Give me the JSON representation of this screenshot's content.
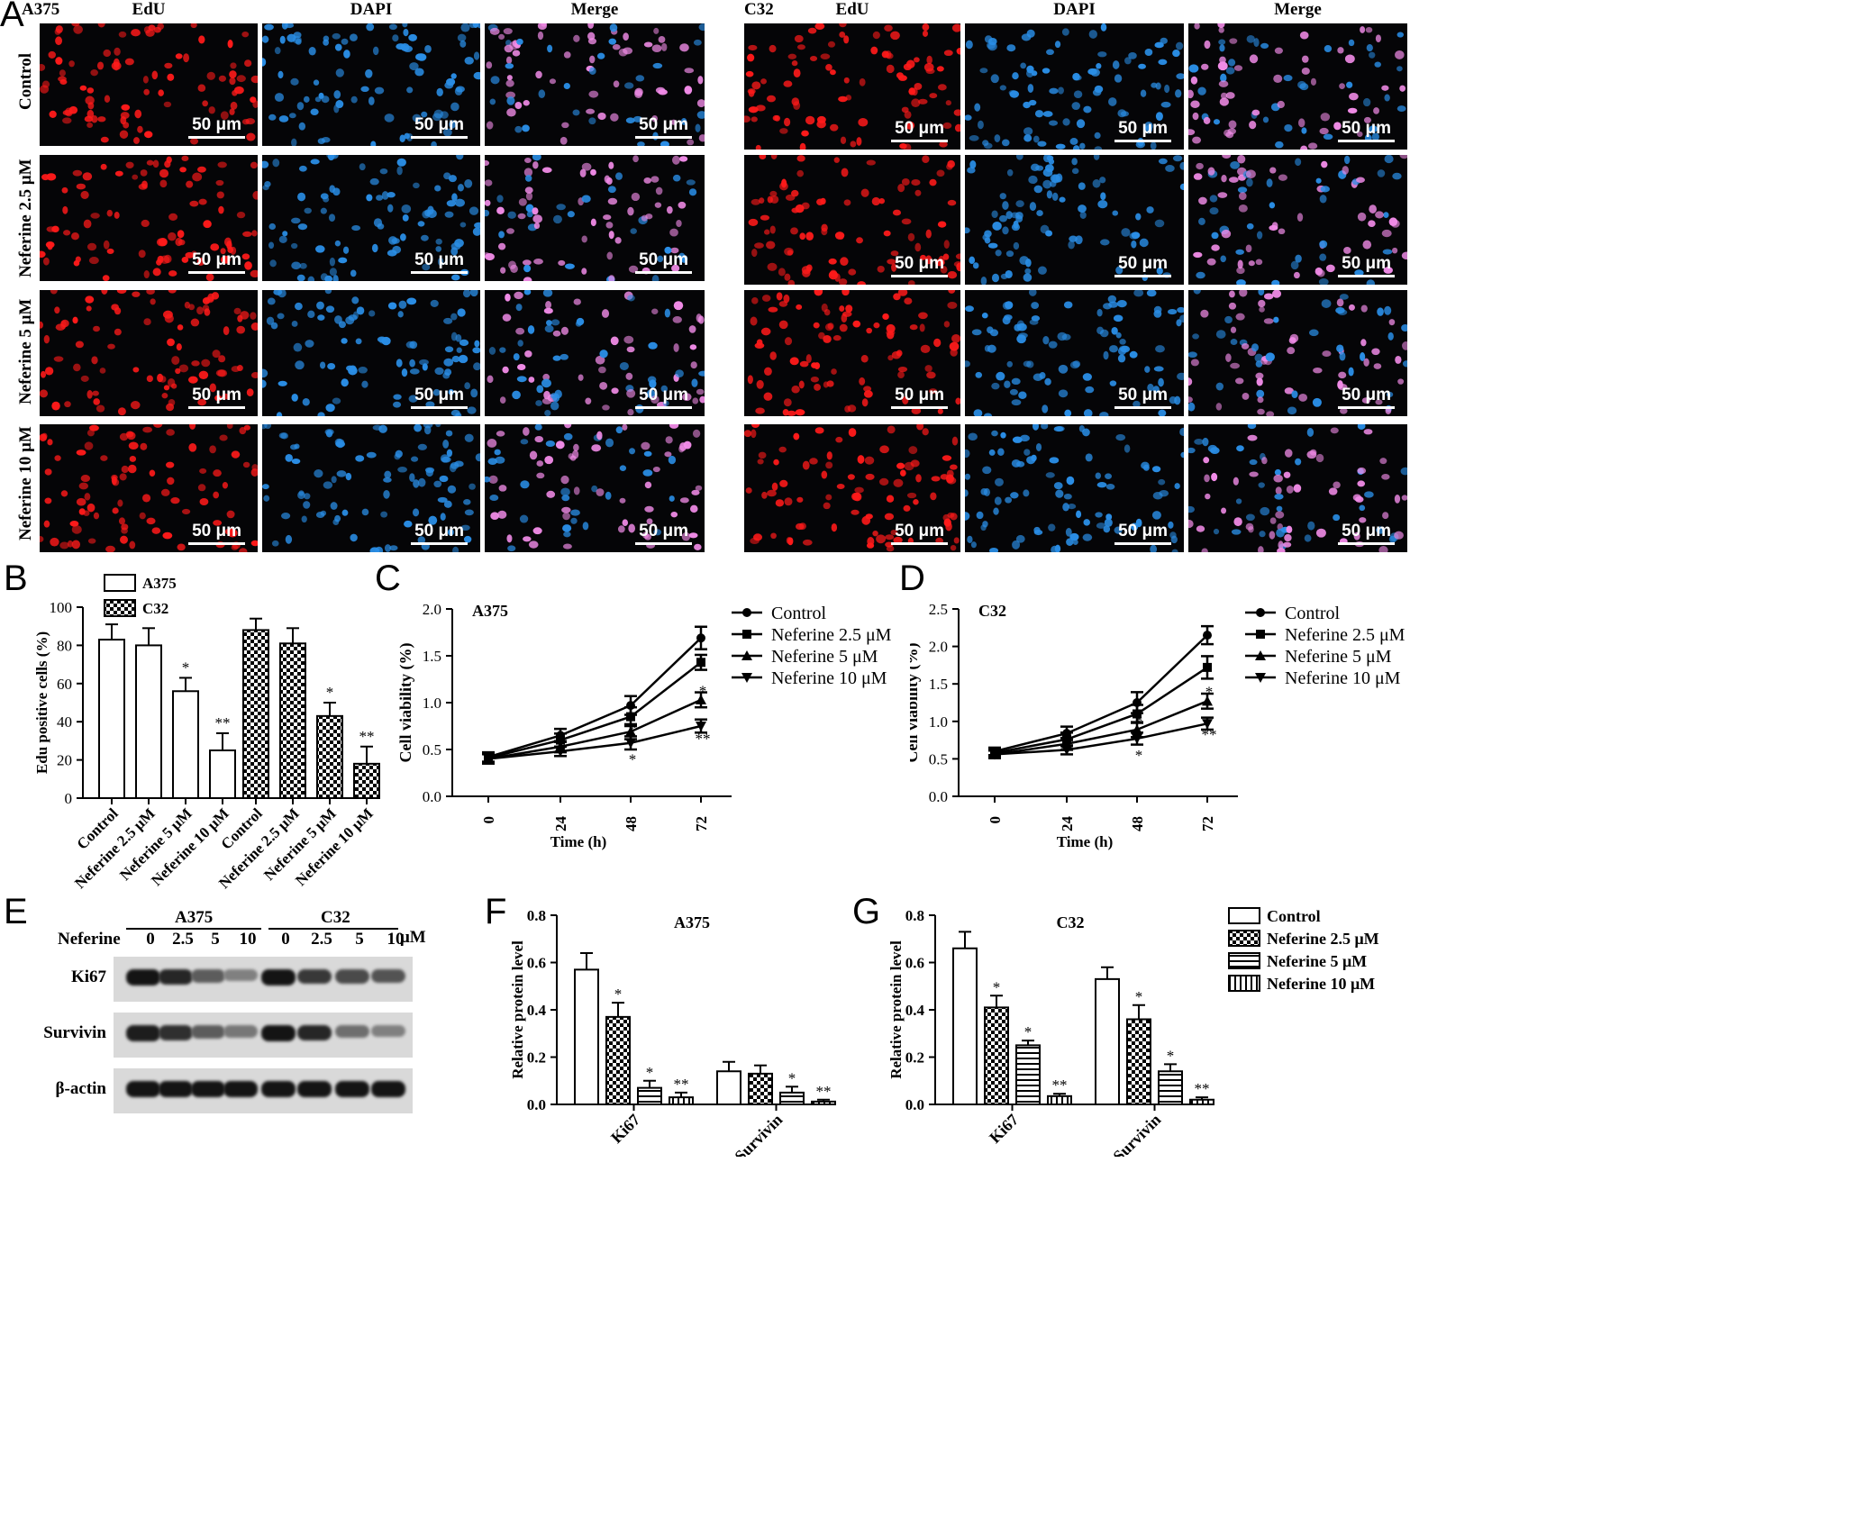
{
  "panel_letters": {
    "a": "A",
    "b": "B",
    "c": "C",
    "d": "D",
    "e": "E",
    "f": "F",
    "g": "G"
  },
  "panel_a": {
    "left": {
      "cell": "A375",
      "columns": [
        "EdU",
        "DAPI",
        "Merge"
      ]
    },
    "right": {
      "cell": "C32",
      "columns": [
        "EdU",
        "DAPI",
        "Merge"
      ]
    },
    "rows": [
      "Control",
      "Neferine 2.5 μM",
      "Neferine 5 μM",
      "Neferine 10 μM"
    ],
    "scale_bar": "50 μm",
    "colors": {
      "edu": "#ff1a1a",
      "dapi": "#2a8ee6",
      "merge": "#f28ce8"
    }
  },
  "chart_data": [
    {
      "panel": "B",
      "type": "bar",
      "ylabel": "Edu positive cells (%)",
      "ylim": [
        0,
        100
      ],
      "yticks": [
        0,
        20,
        40,
        60,
        80,
        100
      ],
      "categories": [
        "Control",
        "Neferine 2.5 μM",
        "Neferine 5 μM",
        "Neferine 10 μM"
      ],
      "series": [
        {
          "name": "A375",
          "values": [
            83,
            80,
            56,
            25
          ],
          "errors": [
            8,
            9,
            7,
            9
          ],
          "sig": [
            "",
            "",
            "*",
            "**"
          ]
        },
        {
          "name": "C32",
          "values": [
            88,
            81,
            43,
            18
          ],
          "errors": [
            6,
            8,
            7,
            9
          ],
          "sig": [
            "",
            "",
            "*",
            "**"
          ]
        }
      ]
    },
    {
      "panel": "C",
      "type": "line",
      "title": "A375",
      "xlabel": "Time (h)",
      "ylabel": "Cell viability (%)",
      "x": [
        0,
        24,
        48,
        72
      ],
      "ylim": [
        0,
        2.0
      ],
      "yticks": [
        "0.0",
        "0.5",
        "1.0",
        "1.5",
        "2.0"
      ],
      "series": [
        {
          "name": "Control",
          "marker": "circle",
          "values": [
            0.42,
            0.65,
            0.97,
            1.69
          ],
          "errors": [
            0.05,
            0.07,
            0.1,
            0.12
          ]
        },
        {
          "name": "Neferine 2.5 μM",
          "marker": "square",
          "values": [
            0.41,
            0.6,
            0.85,
            1.43
          ],
          "errors": [
            0.05,
            0.07,
            0.1,
            0.08
          ]
        },
        {
          "name": "Neferine 5 μM",
          "marker": "triangle",
          "values": [
            0.4,
            0.53,
            0.69,
            1.03
          ],
          "errors": [
            0.05,
            0.06,
            0.08,
            0.08
          ]
        },
        {
          "name": "Neferine 10 μM",
          "marker": "triangle-down",
          "values": [
            0.4,
            0.48,
            0.57,
            0.75
          ],
          "errors": [
            0.05,
            0.05,
            0.07,
            0.07
          ]
        }
      ],
      "annotations": [
        {
          "x": 48,
          "y": 0.73,
          "text": "*"
        },
        {
          "x": 48,
          "y": 0.4,
          "text": "*"
        },
        {
          "x": 72,
          "y": 1.13,
          "text": "*"
        },
        {
          "x": 72,
          "y": 0.62,
          "text": "**"
        }
      ]
    },
    {
      "panel": "D",
      "type": "line",
      "title": "C32",
      "xlabel": "Time (h)",
      "ylabel": "Cell viability (%)",
      "x": [
        0,
        24,
        48,
        72
      ],
      "ylim": [
        0,
        2.5
      ],
      "yticks": [
        "0.0",
        "0.5",
        "1.0",
        "1.5",
        "2.0",
        "2.5"
      ],
      "series": [
        {
          "name": "Control",
          "marker": "circle",
          "values": [
            0.6,
            0.84,
            1.25,
            2.15
          ],
          "errors": [
            0.05,
            0.09,
            0.14,
            0.12
          ]
        },
        {
          "name": "Neferine 2.5 μM",
          "marker": "square",
          "values": [
            0.58,
            0.76,
            1.1,
            1.72
          ],
          "errors": [
            0.05,
            0.09,
            0.12,
            0.15
          ]
        },
        {
          "name": "Neferine 5 μM",
          "marker": "triangle",
          "values": [
            0.56,
            0.7,
            0.89,
            1.27
          ],
          "errors": [
            0.05,
            0.08,
            0.1,
            0.1
          ]
        },
        {
          "name": "Neferine 10 μM",
          "marker": "triangle-down",
          "values": [
            0.56,
            0.62,
            0.77,
            0.97
          ],
          "errors": [
            0.05,
            0.06,
            0.08,
            0.08
          ]
        }
      ],
      "annotations": [
        {
          "x": 48,
          "y": 1.01,
          "text": "*"
        },
        {
          "x": 48,
          "y": 0.55,
          "text": "*"
        },
        {
          "x": 72,
          "y": 1.4,
          "text": "*"
        },
        {
          "x": 72,
          "y": 0.83,
          "text": "**"
        }
      ]
    },
    {
      "panel": "F",
      "type": "bar",
      "title": "A375",
      "ylabel": "Relative protein level",
      "ylim": [
        0,
        0.8
      ],
      "yticks": [
        "0.0",
        "0.2",
        "0.4",
        "0.6",
        "0.8"
      ],
      "categories": [
        "Ki67",
        "Survivin"
      ],
      "series": [
        {
          "name": "Control",
          "values": [
            0.57,
            0.14
          ],
          "errors": [
            0.07,
            0.04
          ]
        },
        {
          "name": "Neferine 2.5 μM",
          "values": [
            0.37,
            0.13
          ],
          "errors": [
            0.06,
            0.035
          ]
        },
        {
          "name": "Neferine 5 μM",
          "values": [
            0.07,
            0.05
          ],
          "errors": [
            0.03,
            0.025
          ]
        },
        {
          "name": "Neferine 10 μM",
          "values": [
            0.03,
            0.012
          ],
          "errors": [
            0.02,
            0.008
          ]
        }
      ],
      "sig": [
        [
          "",
          "*",
          "*",
          "**"
        ],
        [
          "",
          "",
          "*",
          "**"
        ]
      ]
    },
    {
      "panel": "G",
      "type": "bar",
      "title": "C32",
      "ylabel": "Relative protein level",
      "ylim": [
        0,
        0.8
      ],
      "yticks": [
        "0.0",
        "0.2",
        "0.4",
        "0.6",
        "0.8"
      ],
      "categories": [
        "Ki67",
        "Survivin"
      ],
      "series": [
        {
          "name": "Control",
          "values": [
            0.66,
            0.53
          ],
          "errors": [
            0.07,
            0.05
          ]
        },
        {
          "name": "Neferine 2.5 μM",
          "values": [
            0.41,
            0.36
          ],
          "errors": [
            0.05,
            0.06
          ]
        },
        {
          "name": "Neferine 5 μM",
          "values": [
            0.25,
            0.14
          ],
          "errors": [
            0.02,
            0.03
          ]
        },
        {
          "name": "Neferine 10 μM",
          "values": [
            0.035,
            0.02
          ],
          "errors": [
            0.01,
            0.01
          ]
        }
      ],
      "sig": [
        [
          "",
          "*",
          "*",
          "**"
        ],
        [
          "",
          "*",
          "*",
          "**"
        ]
      ]
    }
  ],
  "panel_e": {
    "row_label": "Neferine",
    "groups": [
      "A375",
      "C32"
    ],
    "lanes": [
      "0",
      "2.5",
      "5",
      "10",
      "0",
      "2.5",
      "5",
      "10"
    ],
    "unit": "μM",
    "blots": [
      {
        "name": "Ki67",
        "intensity": [
          1.0,
          0.9,
          0.6,
          0.4,
          1.0,
          0.8,
          0.7,
          0.65
        ]
      },
      {
        "name": "Survivin",
        "intensity": [
          0.95,
          0.85,
          0.6,
          0.45,
          1.0,
          0.9,
          0.5,
          0.4
        ]
      },
      {
        "name": "β-actin",
        "intensity": [
          1.0,
          1.0,
          1.0,
          1.0,
          1.0,
          1.0,
          1.0,
          1.0
        ]
      }
    ]
  }
}
